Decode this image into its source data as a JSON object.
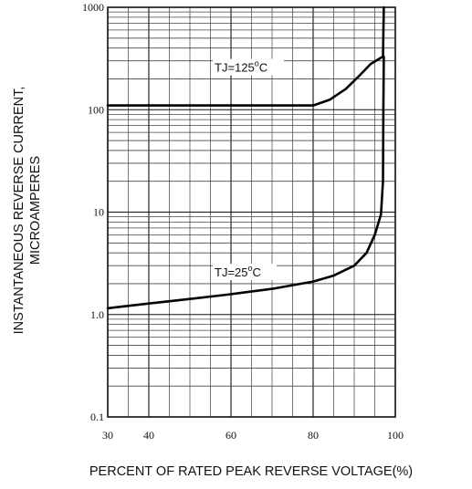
{
  "chart_data": {
    "type": "line",
    "title": "",
    "xlabel": "PERCENT OF RATED PEAK REVERSE VOLTAGE(%)",
    "ylabel_lines": [
      "INSTANTANEOUS REVERSE CURRENT,",
      "MICROAMPERES"
    ],
    "x_scale": "linear",
    "y_scale": "log",
    "xlim": [
      30,
      100
    ],
    "ylim": [
      0.1,
      1000
    ],
    "x_ticks": [
      30,
      40,
      60,
      80,
      100
    ],
    "x_tick_labels": [
      "30",
      "40",
      "60",
      "80",
      "100"
    ],
    "y_ticks": [
      0.1,
      1,
      10,
      100,
      1000
    ],
    "y_tick_labels": [
      "0.1",
      "1.0",
      "10",
      "100",
      "1000"
    ],
    "grid": true,
    "series": [
      {
        "name": "TJ=125°C",
        "label_prefix": "TJ=125",
        "label_sup": "o",
        "label_suffix": "C",
        "points": [
          [
            30,
            110
          ],
          [
            50,
            110
          ],
          [
            70,
            110
          ],
          [
            80,
            110
          ],
          [
            84,
            125
          ],
          [
            88,
            160
          ],
          [
            91,
            210
          ],
          [
            94,
            280
          ],
          [
            97,
            330
          ],
          [
            97.2,
            1000
          ]
        ]
      },
      {
        "name": "TJ=25°C",
        "label_prefix": "TJ=25",
        "label_sup": "o",
        "label_suffix": "C",
        "points": [
          [
            30,
            1.15
          ],
          [
            40,
            1.28
          ],
          [
            50,
            1.42
          ],
          [
            60,
            1.58
          ],
          [
            70,
            1.78
          ],
          [
            80,
            2.1
          ],
          [
            85,
            2.4
          ],
          [
            90,
            3.0
          ],
          [
            93,
            4.0
          ],
          [
            95,
            6.0
          ],
          [
            96.5,
            9.5
          ],
          [
            97,
            20
          ],
          [
            97.1,
            100
          ],
          [
            97.2,
            330
          ]
        ]
      }
    ]
  }
}
